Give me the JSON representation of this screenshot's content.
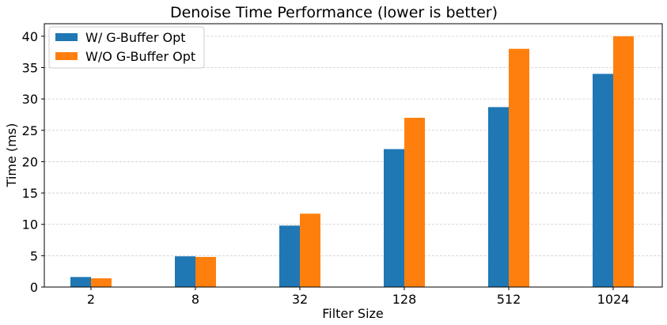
{
  "chart_data": {
    "type": "bar",
    "title": "Denoise Time Performance (lower is better)",
    "xlabel": "Filter Size",
    "ylabel": "Time (ms)",
    "categories": [
      "2",
      "8",
      "32",
      "128",
      "512",
      "1024"
    ],
    "series": [
      {
        "name": "W/ G-Buffer Opt",
        "values": [
          1.6,
          4.9,
          9.8,
          22.0,
          28.7,
          34.0
        ],
        "color": "#1f77b4"
      },
      {
        "name": "W/O G-Buffer Opt",
        "values": [
          1.4,
          4.8,
          11.7,
          27.0,
          38.0,
          40.0
        ],
        "color": "#ff7f0e"
      }
    ],
    "ylim": [
      0,
      42
    ],
    "yticks": [
      0,
      5,
      10,
      15,
      20,
      25,
      30,
      35,
      40
    ],
    "grid": true,
    "legend": "top-left"
  }
}
